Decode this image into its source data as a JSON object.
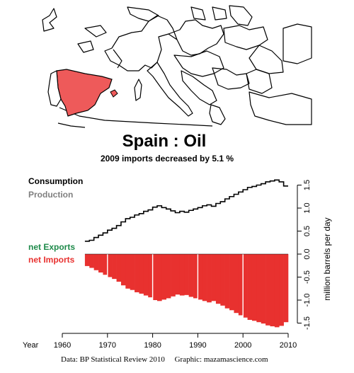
{
  "header": {
    "title": "Spain :  Oil",
    "subtitle": "2009 imports decreased by 5.1 %"
  },
  "legend": {
    "consumption": "Consumption",
    "production": "Production",
    "net_exports": "net Exports",
    "net_imports": "net Imports"
  },
  "footer": {
    "credit": "Data: BP Statistical Review 2010     Graphic: mazamascience.com"
  },
  "colors": {
    "consumption": "#000000",
    "production": "#7f7f7f",
    "net_exports": "#1e8a4a",
    "net_imports": "#e8312f",
    "highlight_country": "#ee5a5a"
  },
  "chart_data": {
    "type": "area",
    "x_axis_label": "Year",
    "ylabel": "million barrels per day",
    "xlim": [
      1960,
      2010
    ],
    "ylim": [
      -1.6,
      1.6
    ],
    "x_ticks": [
      "1960",
      "1970",
      "1980",
      "1990",
      "2000",
      "2010"
    ],
    "y_ticks": [
      "-1.5",
      "-1.0",
      "-0.5",
      "0.0",
      "0.5",
      "1.0",
      "1.5"
    ],
    "x": [
      1965,
      1966,
      1967,
      1968,
      1969,
      1970,
      1971,
      1972,
      1973,
      1974,
      1975,
      1976,
      1977,
      1978,
      1979,
      1980,
      1981,
      1982,
      1983,
      1984,
      1985,
      1986,
      1987,
      1988,
      1989,
      1990,
      1991,
      1992,
      1993,
      1994,
      1995,
      1996,
      1997,
      1998,
      1999,
      2000,
      2001,
      2002,
      2003,
      2004,
      2005,
      2006,
      2007,
      2008,
      2009
    ],
    "series": [
      {
        "key": "consumption",
        "values": [
          0.28,
          0.3,
          0.36,
          0.41,
          0.46,
          0.52,
          0.56,
          0.62,
          0.7,
          0.77,
          0.8,
          0.85,
          0.88,
          0.93,
          0.96,
          1.02,
          1.05,
          1.01,
          0.98,
          0.94,
          0.9,
          0.93,
          0.91,
          0.95,
          0.98,
          1.01,
          1.05,
          1.07,
          1.04,
          1.1,
          1.14,
          1.2,
          1.25,
          1.3,
          1.35,
          1.4,
          1.45,
          1.47,
          1.5,
          1.53,
          1.57,
          1.59,
          1.61,
          1.57,
          1.48
        ]
      },
      {
        "key": "net_imports",
        "values": [
          -0.26,
          -0.3,
          -0.35,
          -0.4,
          -0.45,
          -0.5,
          -0.54,
          -0.6,
          -0.68,
          -0.75,
          -0.78,
          -0.83,
          -0.86,
          -0.9,
          -0.94,
          -1.0,
          -1.02,
          -0.99,
          -0.96,
          -0.92,
          -0.88,
          -0.9,
          -0.89,
          -0.93,
          -0.96,
          -0.99,
          -1.02,
          -1.05,
          -1.02,
          -1.08,
          -1.12,
          -1.18,
          -1.22,
          -1.28,
          -1.33,
          -1.38,
          -1.43,
          -1.45,
          -1.48,
          -1.51,
          -1.55,
          -1.57,
          -1.59,
          -1.56,
          -1.48
        ]
      }
    ]
  }
}
